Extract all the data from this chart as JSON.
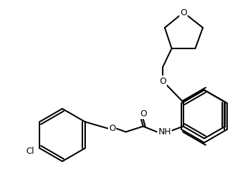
{
  "background_color": "#ffffff",
  "line_color": "#000000",
  "line_width": 1.5,
  "font_size": 9,
  "atoms": {
    "Cl": "Cl",
    "O": "O",
    "N": "NH",
    "C": "C"
  }
}
